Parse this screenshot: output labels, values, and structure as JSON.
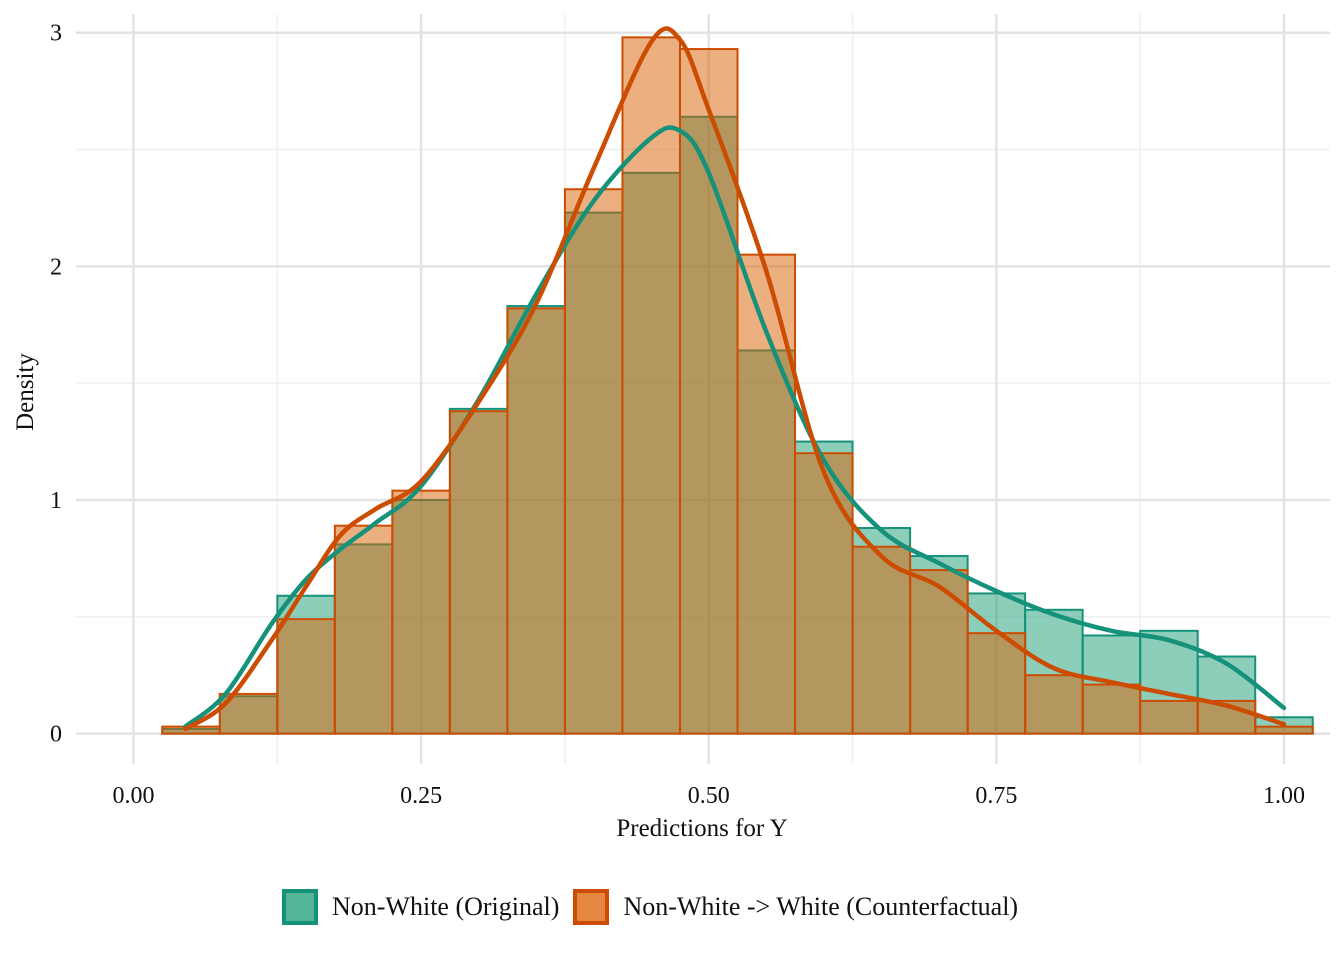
{
  "chart_data": {
    "type": "histogram-density",
    "xlabel": "Predictions for Y",
    "ylabel": "Density",
    "xlim": [
      -0.05,
      1.04
    ],
    "ylim": [
      -0.13,
      3.08
    ],
    "x_ticks": [
      "0.00",
      "0.25",
      "0.50",
      "0.75",
      "1.00"
    ],
    "x_tick_values": [
      0,
      0.25,
      0.5,
      0.75,
      1.0
    ],
    "y_ticks": [
      "0",
      "1",
      "2",
      "3"
    ],
    "y_tick_values": [
      0,
      1,
      2,
      3
    ],
    "grid": true,
    "legend_position": "bottom",
    "bin_width": 0.05,
    "bin_centers": [
      0.05,
      0.1,
      0.15,
      0.2,
      0.25,
      0.3,
      0.35,
      0.4,
      0.45,
      0.5,
      0.55,
      0.6,
      0.65,
      0.7,
      0.75,
      0.8,
      0.85,
      0.9,
      0.95,
      1.0
    ],
    "series": [
      {
        "name": "Non-White (Original)",
        "fill": "#1b9e77",
        "line": "#16917a",
        "histogram": [
          0.02,
          0.16,
          0.59,
          0.81,
          1.0,
          1.39,
          1.83,
          2.23,
          2.4,
          2.64,
          1.64,
          1.25,
          0.88,
          0.76,
          0.6,
          0.53,
          0.42,
          0.44,
          0.33,
          0.07
        ],
        "density_x": [
          0.045,
          0.08,
          0.12,
          0.15,
          0.18,
          0.21,
          0.25,
          0.3,
          0.35,
          0.4,
          0.45,
          0.475,
          0.5,
          0.55,
          0.6,
          0.65,
          0.7,
          0.75,
          0.8,
          0.85,
          0.9,
          0.95,
          1.0
        ],
        "density_y": [
          0.03,
          0.17,
          0.47,
          0.66,
          0.79,
          0.9,
          1.06,
          1.43,
          1.88,
          2.28,
          2.55,
          2.58,
          2.4,
          1.72,
          1.17,
          0.87,
          0.73,
          0.61,
          0.51,
          0.44,
          0.4,
          0.3,
          0.11
        ]
      },
      {
        "name": "Non-White -> White (Counterfactual)",
        "fill": "#d95f02",
        "line": "#cc4c02",
        "histogram": [
          0.03,
          0.17,
          0.49,
          0.89,
          1.04,
          1.38,
          1.82,
          2.33,
          2.98,
          2.93,
          2.05,
          1.2,
          0.8,
          0.7,
          0.43,
          0.25,
          0.21,
          0.14,
          0.14,
          0.03
        ],
        "density_x": [
          0.045,
          0.08,
          0.12,
          0.15,
          0.18,
          0.21,
          0.25,
          0.3,
          0.35,
          0.4,
          0.45,
          0.475,
          0.5,
          0.55,
          0.6,
          0.65,
          0.7,
          0.75,
          0.8,
          0.85,
          0.9,
          0.95,
          1.0
        ],
        "density_y": [
          0.02,
          0.13,
          0.4,
          0.63,
          0.85,
          0.96,
          1.08,
          1.42,
          1.84,
          2.42,
          2.96,
          2.97,
          2.67,
          1.98,
          1.12,
          0.76,
          0.63,
          0.44,
          0.28,
          0.22,
          0.17,
          0.12,
          0.04
        ]
      }
    ]
  },
  "legend": {
    "items": [
      {
        "label": "Non-White (Original)",
        "color": "#1b9e77",
        "border": "#16917a"
      },
      {
        "label": "Non-White -> White (Counterfactual)",
        "color": "#d95f02",
        "border": "#cc4c02"
      }
    ]
  }
}
